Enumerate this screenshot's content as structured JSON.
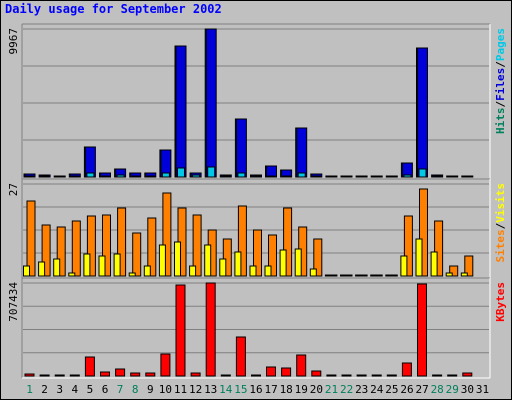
{
  "chart_data": {
    "type": "bar",
    "title": "Daily usage for September 2002",
    "colors": {
      "hits": "#00805c",
      "files": "#0000d8",
      "pages": "#00c8e6",
      "visits": "#ffff00",
      "sites": "#ff8000",
      "kbytes": "#ff0000",
      "title": "#0000ff",
      "weekday": "#000000",
      "weekend": "#00805c"
    },
    "categories": [
      "1",
      "2",
      "3",
      "4",
      "5",
      "6",
      "7",
      "8",
      "9",
      "10",
      "11",
      "12",
      "13",
      "14",
      "15",
      "16",
      "17",
      "18",
      "19",
      "20",
      "21",
      "22",
      "23",
      "24",
      "25",
      "26",
      "27",
      "28",
      "29",
      "30",
      "31"
    ],
    "weekend_days": [
      "1",
      "7",
      "8",
      "14",
      "15",
      "21",
      "22",
      "28",
      "29"
    ],
    "panels": [
      {
        "id": "hits",
        "max_label": "9967",
        "legend": [
          "Pages",
          "Files",
          "Hits"
        ],
        "legend_color_keys": [
          "pages",
          "files",
          "hits"
        ],
        "ylim": [
          0,
          9967
        ],
        "series": [
          {
            "name": "Hits",
            "color_key": "hits",
            "values": [
              200,
              150,
              100,
              200,
              2000,
              250,
              550,
              300,
              300,
              1800,
              8800,
              300,
              9967,
              150,
              3900,
              120,
              750,
              450,
              3300,
              200,
              0,
              0,
              0,
              0,
              0,
              950,
              8700,
              120,
              80,
              80
            ]
          },
          {
            "name": "Files",
            "color_key": "files",
            "values": [
              200,
              150,
              100,
              200,
              2000,
              250,
              550,
              300,
              300,
              1800,
              8800,
              300,
              9967,
              150,
              3900,
              120,
              750,
              450,
              3300,
              200,
              0,
              0,
              0,
              0,
              0,
              950,
              8700,
              120,
              80,
              80
            ]
          },
          {
            "name": "Pages",
            "color_key": "pages",
            "values": [
              100,
              70,
              50,
              100,
              300,
              100,
              120,
              100,
              100,
              300,
              600,
              150,
              700,
              70,
              300,
              60,
              100,
              80,
              250,
              100,
              0,
              0,
              0,
              0,
              0,
              150,
              550,
              60,
              40,
              40
            ]
          }
        ]
      },
      {
        "id": "visits",
        "max_label": "27",
        "legend": [
          "Visits",
          "Sites"
        ],
        "legend_color_keys": [
          "visits",
          "sites"
        ],
        "ylim": [
          0,
          27
        ],
        "series": [
          {
            "name": "Sites",
            "color_key": "sites",
            "values": [
              22,
              15,
              14.5,
              16,
              17.5,
              18,
              20,
              12.5,
              17,
              24.5,
              20,
              18,
              13.5,
              11,
              20.5,
              13.5,
              12,
              20,
              14.5,
              11,
              0,
              0,
              0,
              0,
              0,
              17.5,
              25.5,
              16,
              3,
              6
            ]
          },
          {
            "name": "Visits",
            "color_key": "visits",
            "values": [
              3,
              4,
              5,
              1,
              6.5,
              6,
              6.5,
              1,
              3,
              9,
              10,
              3,
              9,
              5,
              7,
              3,
              3,
              7.5,
              8,
              2,
              0,
              0,
              0,
              0,
              0,
              6,
              11,
              7,
              1,
              1
            ]
          }
        ]
      },
      {
        "id": "kbytes",
        "max_label": "707434",
        "legend": [
          "KBytes"
        ],
        "legend_color_keys": [
          "kbytes"
        ],
        "ylim": [
          0,
          707434
        ],
        "series": [
          {
            "name": "KBytes",
            "color_key": "kbytes",
            "values": [
              18000,
              7000,
              7000,
              7000,
              145000,
              30000,
              55000,
              25000,
              25000,
              165000,
              690000,
              25000,
              707434,
              8000,
              300000,
              8000,
              70000,
              60000,
              160000,
              40000,
              0,
              0,
              0,
              0,
              0,
              100000,
              700000,
              8000,
              7000,
              20000
            ]
          }
        ]
      }
    ]
  }
}
